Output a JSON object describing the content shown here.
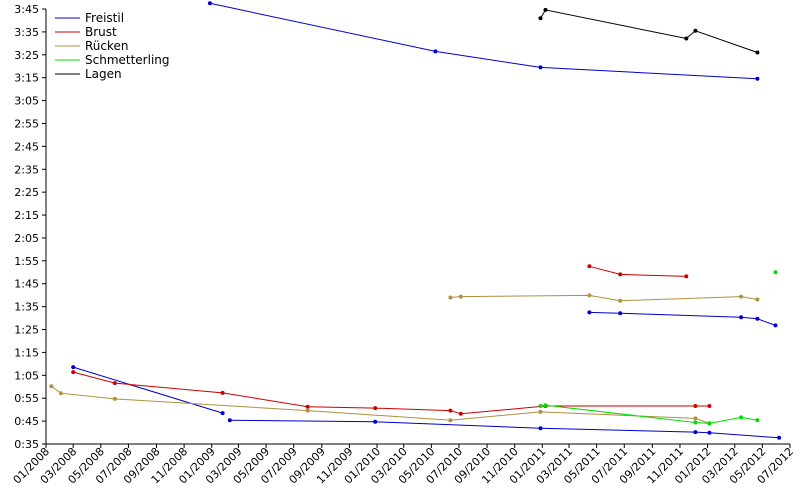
{
  "chart_data": {
    "type": "line",
    "title": "",
    "xlabel": "",
    "ylabel": "",
    "x_type": "date",
    "xlim": [
      "2008-01-01",
      "2012-07-01"
    ],
    "ylim": [
      "0:35",
      "3:45"
    ],
    "grid": false,
    "legend_position": "top-left",
    "xticks": [
      "01/2008",
      "03/2008",
      "05/2008",
      "07/2008",
      "09/2008",
      "11/2008",
      "01/2009",
      "03/2009",
      "05/2009",
      "07/2009",
      "09/2009",
      "11/2009",
      "01/2010",
      "03/2010",
      "05/2010",
      "07/2010",
      "09/2010",
      "11/2010",
      "01/2011",
      "03/2011",
      "05/2011",
      "07/2011",
      "09/2011",
      "11/2011",
      "01/2012",
      "03/2012",
      "05/2012",
      "07/2012"
    ],
    "yticks": [
      "0:35",
      "0:45",
      "0:55",
      "1:05",
      "1:15",
      "1:25",
      "1:35",
      "1:45",
      "1:55",
      "2:05",
      "2:15",
      "2:25",
      "2:35",
      "2:45",
      "2:55",
      "3:05",
      "3:15",
      "3:25",
      "3:35",
      "3:45"
    ],
    "series": [
      {
        "name": "Freistil",
        "color": "#0000cc",
        "lines": [
          [
            [
              "2008-03-01",
              "1:08.6"
            ],
            [
              "2009-01-25",
              "0:48.5"
            ]
          ],
          [
            [
              "2008-12-28",
              "3:47.5"
            ],
            [
              "2010-05-10",
              "3:26.5"
            ],
            [
              "2010-12-28",
              "3:19.5"
            ],
            [
              "2012-04-20",
              "3:14.5"
            ]
          ],
          [
            [
              "2009-02-10",
              "0:45.4"
            ],
            [
              "2009-12-28",
              "0:44.7"
            ],
            [
              "2010-12-28",
              "0:41.9"
            ],
            [
              "2011-12-05",
              "0:40.2"
            ],
            [
              "2012-01-05",
              "0:39.9"
            ],
            [
              "2012-06-07",
              "0:37.7"
            ]
          ],
          [
            [
              "2011-04-15",
              "1:32.5"
            ],
            [
              "2011-06-22",
              "1:32.1"
            ],
            [
              "2012-03-15",
              "1:30.4"
            ],
            [
              "2012-04-20",
              "1:29.7"
            ],
            [
              "2012-05-30",
              "1:26.8"
            ]
          ]
        ]
      },
      {
        "name": "Brust",
        "color": "#cc0000",
        "lines": [
          [
            [
              "2008-03-01",
              "1:06.4"
            ],
            [
              "2008-06-01",
              "1:01.6"
            ],
            [
              "2009-01-25",
              "0:57.3"
            ],
            [
              "2009-08-01",
              "0:51.3"
            ],
            [
              "2009-12-28",
              "0:50.7"
            ],
            [
              "2010-06-12",
              "0:49.6"
            ],
            [
              "2010-07-05",
              "0:48.2"
            ],
            [
              "2011-01-08",
              "0:51.6"
            ],
            [
              "2011-12-05",
              "0:51.6"
            ],
            [
              "2012-01-05",
              "0:51.6"
            ]
          ],
          [
            [
              "2011-04-15",
              "1:52.6"
            ],
            [
              "2011-06-22",
              "1:49.1"
            ],
            [
              "2011-11-15",
              "1:48.2"
            ]
          ]
        ]
      },
      {
        "name": "Rücken",
        "color": "#b09040",
        "lines": [
          [
            [
              "2008-01-13",
              "1:00.2"
            ],
            [
              "2008-02-03",
              "0:57.2"
            ],
            [
              "2008-06-01",
              "0:54.7"
            ],
            [
              "2009-08-01",
              "0:49.6"
            ],
            [
              "2010-06-12",
              "0:45.4"
            ],
            [
              "2010-12-28",
              "0:49.0"
            ],
            [
              "2011-12-05",
              "0:46.2"
            ],
            [
              "2012-01-05",
              "0:44.0"
            ]
          ],
          [
            [
              "2010-06-12",
              "1:39.0"
            ],
            [
              "2010-07-05",
              "1:39.4"
            ],
            [
              "2011-04-15",
              "1:39.9"
            ],
            [
              "2011-06-22",
              "1:37.6"
            ],
            [
              "2012-03-15",
              "1:39.4"
            ],
            [
              "2012-04-20",
              "1:38.1"
            ]
          ]
        ]
      },
      {
        "name": "Schmetterling",
        "color": "#00dd00",
        "lines": [
          [
            [
              "2010-12-28",
              "0:51.6"
            ],
            [
              "2011-01-08",
              "0:51.9"
            ],
            [
              "2011-12-05",
              "0:44.4"
            ],
            [
              "2012-01-05",
              "0:44.0"
            ],
            [
              "2012-03-15",
              "0:46.6"
            ],
            [
              "2012-04-20",
              "0:45.4"
            ]
          ],
          [
            [
              "2012-05-30",
              "1:50.0"
            ]
          ]
        ]
      },
      {
        "name": "Lagen",
        "color": "#000000",
        "lines": [
          [
            [
              "2010-12-28",
              "3:41.0"
            ],
            [
              "2011-01-08",
              "3:44.6"
            ],
            [
              "2011-11-15",
              "3:32.1"
            ],
            [
              "2011-12-05",
              "3:35.5"
            ],
            [
              "2012-04-20",
              "3:26.0"
            ]
          ]
        ]
      }
    ]
  }
}
